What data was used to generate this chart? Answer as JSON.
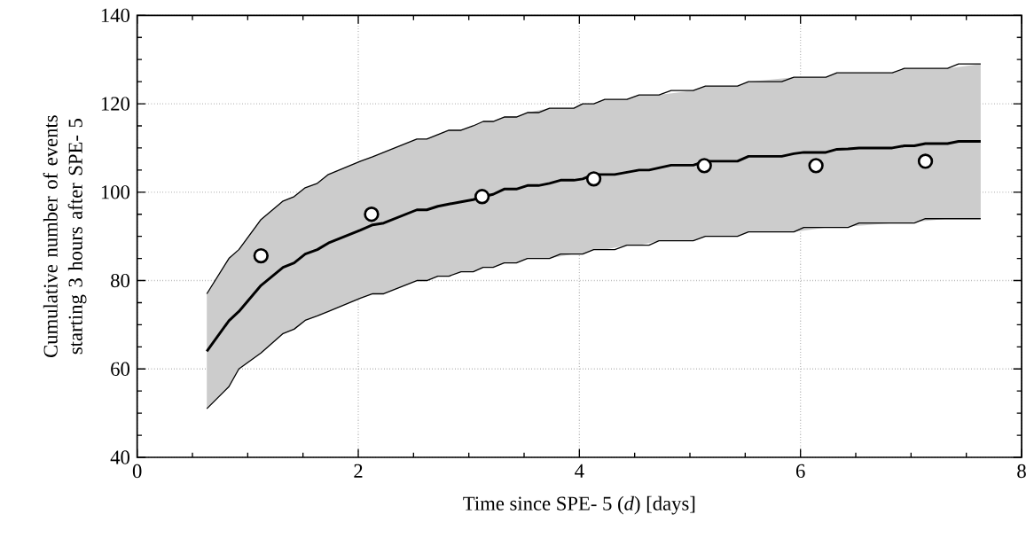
{
  "chart_data": {
    "type": "line",
    "xlabel": "Time since SPE- 5 (*d*) [days]",
    "ylabel": "Cumulative number of events starting 3 hours after SPE- 5",
    "xlim": [
      0,
      8
    ],
    "ylim": [
      40,
      140
    ],
    "xticks": [
      0,
      2,
      4,
      6,
      8
    ],
    "yticks": [
      40,
      60,
      80,
      100,
      120,
      140
    ],
    "grid": true,
    "series": [
      {
        "type": "line",
        "color": "#000000",
        "marker": "none",
        "line_style": "solid",
        "x": [
          0.63,
          0.83,
          0.92,
          1.12,
          1.32,
          1.42,
          1.52,
          1.63,
          1.73,
          2.02,
          2.13,
          2.23,
          2.53,
          2.62,
          2.72,
          2.82,
          2.93,
          3.04,
          3.13,
          3.22,
          3.32,
          3.43,
          3.53,
          3.63,
          3.73,
          3.83,
          3.95,
          4.03,
          4.13,
          4.23,
          4.32,
          4.43,
          4.54,
          4.63,
          4.72,
          4.83,
          5.03,
          5.14,
          5.43,
          5.53,
          5.83,
          5.94,
          6.03,
          6.23,
          6.33,
          6.43,
          6.53,
          6.83,
          6.94,
          7.03,
          7.13,
          7.33,
          7.43,
          7.63
        ],
        "values": [
          64,
          70.9,
          73,
          78.9,
          83,
          84,
          86,
          87,
          88.5,
          91.4,
          92.6,
          93,
          96,
          96,
          96.8,
          97.3,
          97.8,
          98.3,
          99,
          99.5,
          100.7,
          100.7,
          101.5,
          101.5,
          102,
          102.7,
          102.7,
          103,
          104,
          104,
          104,
          104.5,
          105,
          105,
          105.5,
          106.1,
          106.1,
          107,
          107,
          108.1,
          108.1,
          108.7,
          109,
          109,
          109.7,
          109.8,
          110,
          110,
          110.5,
          110.5,
          111,
          111,
          111.5,
          111.5
        ],
        "lower": [
          51,
          56,
          60,
          63.6,
          68,
          69,
          71,
          72,
          73,
          76,
          77,
          77,
          80,
          80,
          81,
          81,
          82,
          82,
          83,
          83,
          84,
          84,
          85,
          null,
          85,
          null,
          86,
          86,
          87,
          87,
          null,
          88,
          88,
          null,
          89,
          null,
          89,
          90,
          90,
          91,
          null,
          91,
          null,
          92,
          92,
          null,
          null,
          93,
          93,
          null,
          null,
          94,
          null,
          94
        ],
        "upper": [
          77,
          85,
          87,
          93.8,
          98,
          99,
          101,
          102,
          104,
          107,
          108,
          109,
          112,
          112,
          113,
          114,
          114,
          115,
          116,
          116,
          117,
          117,
          118,
          null,
          119,
          null,
          119,
          120,
          120,
          121,
          null,
          121,
          122,
          null,
          122,
          null,
          123,
          124,
          124,
          125,
          null,
          126,
          null,
          126,
          127,
          null,
          null,
          127,
          128,
          null,
          null,
          128,
          null,
          129
        ]
      },
      {
        "color": "#000000",
        "marker": "none",
        "line_style": "solid",
        "x": [
          0.63,
          0.83,
          0.92,
          1.12,
          1.32,
          1.42,
          1.52,
          1.63,
          1.73,
          2.02,
          2.13,
          2.23,
          2.53,
          2.62,
          2.72,
          2.82,
          2.93,
          3.04,
          3.13,
          3.22,
          3.32,
          3.43,
          3.53,
          3.63,
          3.73,
          3.83,
          3.95,
          4.03,
          4.13,
          4.23,
          4.32,
          4.43,
          4.54,
          4.63,
          4.72,
          4.83,
          5.03,
          5.14,
          5.43,
          5.53,
          5.83,
          5.94,
          6.03,
          6.23,
          6.33,
          6.43,
          6.53,
          6.83,
          6.94,
          7.03,
          7.13,
          7.33,
          7.43,
          7.63
        ],
        "values": [
          77,
          85,
          87,
          93.8,
          98,
          99,
          101,
          102,
          104,
          107,
          108,
          109,
          112,
          112,
          113,
          114,
          114,
          115,
          116,
          116,
          117,
          117,
          118,
          118,
          119,
          119,
          119,
          120,
          120,
          121,
          121,
          121,
          122,
          122,
          122,
          123,
          123,
          124,
          124,
          125,
          125,
          126,
          126,
          126,
          127,
          127,
          127,
          127,
          128,
          128,
          128,
          128,
          129,
          129
        ]
      },
      {
        "color": "#000000",
        "marker": "none",
        "line_style": "solid",
        "x": [
          0.63,
          0.83,
          0.92,
          1.12,
          1.32,
          1.42,
          1.52,
          1.63,
          1.73,
          2.02,
          2.13,
          2.23,
          2.53,
          2.62,
          2.72,
          2.82,
          2.93,
          3.04,
          3.13,
          3.22,
          3.32,
          3.43,
          3.53,
          3.63,
          3.73,
          3.83,
          3.95,
          4.03,
          4.13,
          4.23,
          4.32,
          4.43,
          4.54,
          4.63,
          4.72,
          4.83,
          5.03,
          5.14,
          5.43,
          5.53,
          5.83,
          5.94,
          6.03,
          6.23,
          6.33,
          6.43,
          6.53,
          6.83,
          6.94,
          7.03,
          7.13,
          7.33,
          7.43,
          7.63
        ],
        "values": [
          51,
          56,
          60,
          63.6,
          68,
          69,
          71,
          72,
          73,
          76,
          77,
          77,
          80,
          80,
          81,
          81,
          82,
          82,
          83,
          83,
          84,
          84,
          85,
          85,
          85,
          86,
          86,
          86,
          87,
          87,
          87,
          88,
          88,
          88,
          89,
          89,
          89,
          90,
          90,
          91,
          91,
          91,
          92,
          92,
          92,
          92,
          93,
          93,
          93,
          93,
          94,
          94,
          94,
          94
        ]
      },
      {
        "type": "scatter",
        "color": "#000000",
        "marker": "circle",
        "x": [
          1.12,
          2.12,
          3.12,
          4.13,
          5.13,
          6.14,
          7.13
        ],
        "values": [
          85.6,
          95,
          99,
          103,
          106,
          106,
          107
        ]
      }
    ]
  }
}
